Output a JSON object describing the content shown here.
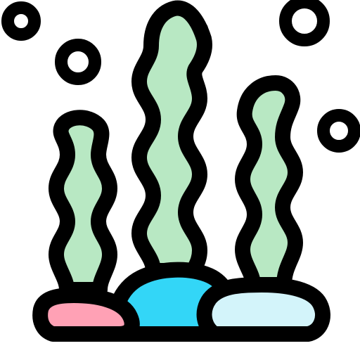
{
  "icon": {
    "name": "seaweed-icon",
    "style": "filled-outline"
  },
  "colors": {
    "outline": "#000000",
    "seaweed": "#B8E8C3",
    "rock_pink": "#FFA1B5",
    "rock_blue": "#33D6F7",
    "rock_pale": "#D3F4FA",
    "background": "#FFFFFF"
  }
}
